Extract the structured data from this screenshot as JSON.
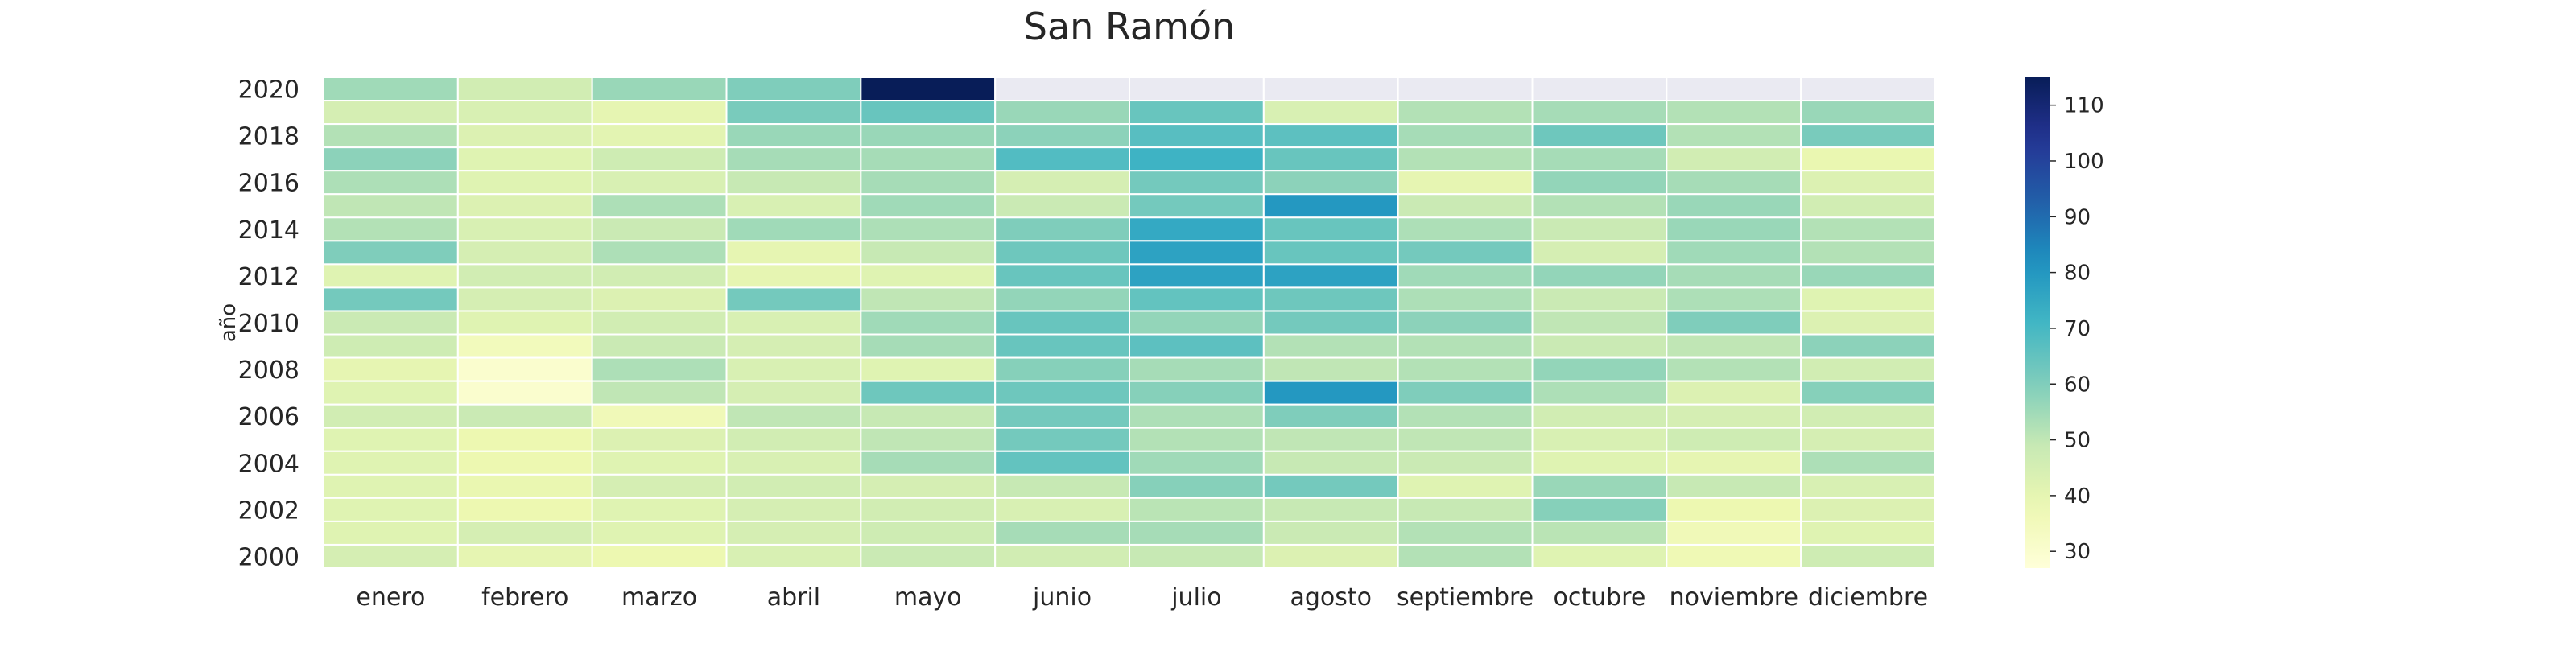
{
  "chart_data": {
    "type": "heatmap",
    "title": "San Ramón",
    "xlabel": "",
    "ylabel": "año",
    "columns": [
      "enero",
      "febrero",
      "marzo",
      "abril",
      "mayo",
      "junio",
      "julio",
      "agosto",
      "septiembre",
      "octubre",
      "noviembre",
      "diciembre"
    ],
    "rows": [
      2020,
      2019,
      2018,
      2017,
      2016,
      2015,
      2014,
      2013,
      2012,
      2011,
      2010,
      2009,
      2008,
      2007,
      2006,
      2005,
      2004,
      2003,
      2002,
      2001,
      2000
    ],
    "y_tick_labels": [
      "2020",
      "2018",
      "2016",
      "2014",
      "2012",
      "2010",
      "2008",
      "2006",
      "2004",
      "2002",
      "2000"
    ],
    "values": [
      [
        55,
        46,
        56,
        60,
        115,
        null,
        null,
        null,
        null,
        null,
        null,
        null
      ],
      [
        45,
        44,
        40,
        61,
        64,
        56,
        64,
        44,
        52,
        54,
        52,
        56
      ],
      [
        52,
        43,
        41,
        56,
        56,
        58,
        67,
        66,
        54,
        63,
        52,
        61
      ],
      [
        58,
        42,
        47,
        54,
        54,
        68,
        72,
        64,
        52,
        54,
        46,
        39
      ],
      [
        53,
        42,
        44,
        49,
        54,
        45,
        62,
        58,
        40,
        57,
        54,
        43
      ],
      [
        50,
        43,
        53,
        44,
        55,
        48,
        62,
        80,
        48,
        52,
        56,
        46
      ],
      [
        52,
        44,
        48,
        55,
        53,
        60,
        75,
        64,
        53,
        48,
        56,
        52
      ],
      [
        60,
        45,
        53,
        40,
        49,
        63,
        77,
        64,
        62,
        45,
        55,
        52
      ],
      [
        42,
        46,
        46,
        40,
        42,
        64,
        77,
        77,
        55,
        57,
        54,
        56
      ],
      [
        62,
        45,
        43,
        62,
        50,
        57,
        65,
        63,
        53,
        48,
        53,
        42
      ],
      [
        48,
        42,
        46,
        44,
        55,
        64,
        57,
        62,
        58,
        50,
        60,
        43
      ],
      [
        47,
        35,
        48,
        45,
        54,
        64,
        66,
        52,
        52,
        48,
        50,
        58
      ],
      [
        40,
        30,
        53,
        44,
        42,
        59,
        54,
        50,
        52,
        57,
        52,
        46
      ],
      [
        42,
        30,
        50,
        45,
        63,
        63,
        59,
        80,
        60,
        53,
        43,
        59
      ],
      [
        46,
        48,
        36,
        50,
        49,
        62,
        53,
        60,
        52,
        46,
        45,
        46
      ],
      [
        42,
        38,
        43,
        46,
        50,
        62,
        52,
        50,
        50,
        44,
        47,
        45
      ],
      [
        42,
        38,
        42,
        44,
        54,
        65,
        55,
        49,
        48,
        42,
        40,
        53
      ],
      [
        42,
        39,
        45,
        46,
        45,
        49,
        59,
        62,
        42,
        56,
        49,
        44
      ],
      [
        42,
        38,
        42,
        45,
        46,
        44,
        51,
        49,
        49,
        59,
        38,
        43
      ],
      [
        42,
        45,
        42,
        45,
        47,
        54,
        54,
        48,
        52,
        51,
        36,
        42
      ],
      [
        45,
        40,
        38,
        44,
        48,
        46,
        49,
        43,
        52,
        42,
        37,
        47
      ]
    ],
    "missing_color": "#eaeaf2",
    "colormap": "YlGnBu",
    "colorbar": {
      "vmin": 27,
      "vmax": 115,
      "ticks": [
        30,
        40,
        50,
        60,
        70,
        80,
        90,
        100,
        110
      ],
      "tick_labels": [
        "30",
        "40",
        "50",
        "60",
        "70",
        "80",
        "90",
        "100",
        "110"
      ]
    },
    "grid": false,
    "colorbar_position": "right"
  }
}
